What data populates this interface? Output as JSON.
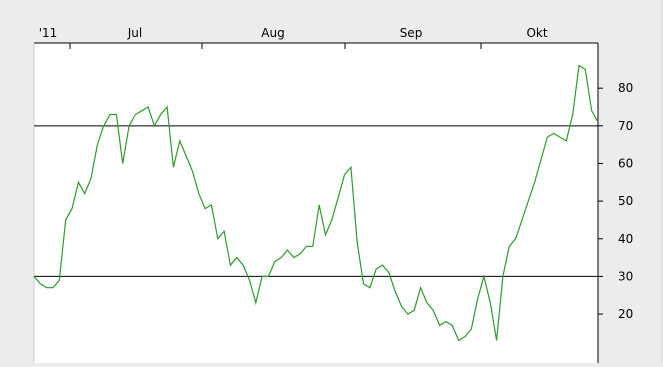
{
  "chart_data": {
    "type": "line",
    "title": "",
    "xlabel": "",
    "ylabel": "",
    "ylim": [
      7,
      92
    ],
    "x_tick_labels": [
      "'11",
      "Jul",
      "Aug",
      "Sep",
      "Okt"
    ],
    "y_ticks": [
      20,
      30,
      40,
      50,
      60,
      70,
      80
    ],
    "reference_lines": [
      30,
      70
    ],
    "grid": false,
    "legend": "none",
    "colors": {
      "series": "#2e9b2e",
      "reference": "#000000",
      "plot_background": "#ffffff",
      "frame_background": "#ececec"
    },
    "series": [
      {
        "values": [
          30,
          28,
          27,
          27,
          29,
          45,
          48,
          55,
          52,
          56,
          65,
          70,
          73,
          73,
          60,
          70,
          73,
          74,
          75,
          70,
          73,
          75,
          59,
          66,
          62,
          58,
          52,
          48,
          49,
          40,
          42,
          33,
          35,
          33,
          29,
          23,
          30,
          30,
          34,
          35,
          37,
          35,
          36,
          38,
          38,
          49,
          41,
          45,
          51,
          57,
          59,
          39,
          28,
          27,
          32,
          33,
          31,
          26,
          22,
          20,
          21,
          27,
          23,
          21,
          17,
          18,
          17,
          13,
          14,
          16,
          24,
          30,
          23,
          13,
          30,
          38,
          40,
          45,
          50,
          55,
          61,
          67,
          68,
          67,
          66,
          73,
          86,
          85,
          74,
          71
        ]
      }
    ]
  }
}
